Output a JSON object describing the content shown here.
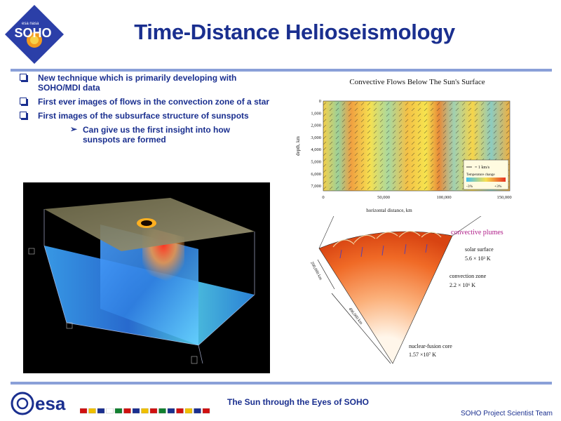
{
  "title": "Time-Distance Helioseismology",
  "logo": {
    "mission": "SOHO",
    "small_text": "esa nasa"
  },
  "bullets": [
    "New technique which is primarily developing with SOHO/MDI data",
    "First ever images of flows in the convection zone of a star",
    "First images of the subsurface structure of sunspots"
  ],
  "sub_bullet": "Can give us the first insight into how sunspots are formed",
  "flow_chart": {
    "title": "Convective Flows Below The Sun's Surface",
    "ylabel": "depth, km",
    "xlabel": "horizontal distance, km",
    "y_ticks": [
      "0",
      "1,000",
      "2,000",
      "3,000",
      "4,000",
      "5,000",
      "6,000",
      "7,000"
    ],
    "x_ticks": [
      "0",
      "50,000",
      "100,000",
      "150,000"
    ],
    "legend": {
      "arrow_label": "= 1 km/s",
      "bar_title": "Temperature change",
      "min": "-3%",
      "max": "+3%"
    }
  },
  "diagram": {
    "plumes": "convective plumes",
    "surface_label": "solar surface",
    "surface_temp": "5.6 × 10³ K",
    "zone_label": "convection zone",
    "zone_temp": "2.2 × 10⁶ K",
    "core_label": "nuclear-fusion core",
    "core_temp": "1.57 ×10⁷ K",
    "depth1": "200,000 km",
    "depth2": "496,000 km"
  },
  "footer": {
    "title": "The Sun through the Eyes of SOHO",
    "credit": "SOHO Project Scientist Team",
    "agency": "esa"
  },
  "colors": {
    "accent": "#1a2f8f",
    "rule": "#8aa0d8",
    "plume": "#b0208a"
  }
}
